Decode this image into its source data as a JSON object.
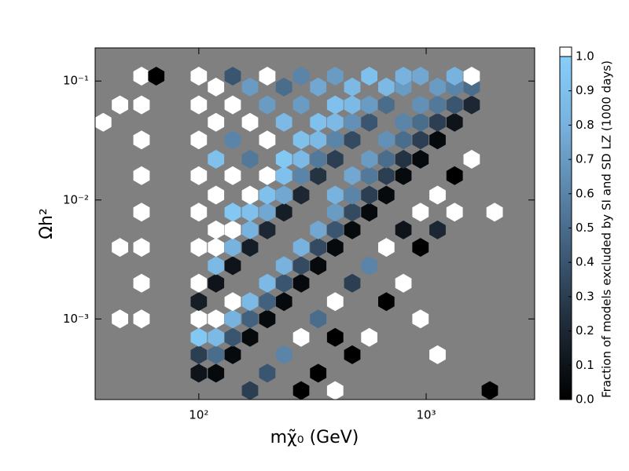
{
  "chart_data": {
    "type": "hexbin",
    "xlabel": "mχ̃₀ (GeV)",
    "ylabel": "Ωh²",
    "colorbar_label": "Fraction of models excluded by SI and SD LZ (1000 days)",
    "xscale": "log",
    "yscale": "log",
    "xlim": [
      35,
      3000
    ],
    "ylim": [
      0.00021,
      0.19
    ],
    "xticks": [
      {
        "value": 100,
        "label": "10²"
      },
      {
        "value": 1000,
        "label": "10³"
      }
    ],
    "yticks": [
      {
        "value": 0.001,
        "label": "10⁻³"
      },
      {
        "value": 0.01,
        "label": "10⁻²"
      },
      {
        "value": 0.1,
        "label": "10⁻¹"
      }
    ],
    "background": "#808080",
    "colormap": [
      "#000000",
      "#1c2733",
      "#3a5570",
      "#5a84a8",
      "#78b2de",
      "#87cefa"
    ],
    "over_color": "#ffffff",
    "clim": [
      0,
      1
    ],
    "cticks": [
      {
        "value": 0,
        "label": "0.0"
      },
      0.1,
      0.2,
      0.3,
      0.4,
      0.5,
      0.6,
      0.7,
      0.8,
      0.9,
      {
        "value": 1,
        "label": "1.0"
      }
    ],
    "cells": [
      [
        100,
        0.00035,
        0.1
      ],
      [
        100,
        0.0005,
        0.3
      ],
      [
        100,
        0.0007,
        0.95
      ],
      [
        100,
        0.001,
        1
      ],
      [
        100,
        0.0014,
        0.15
      ],
      [
        100,
        0.002,
        1
      ],
      [
        100,
        0.004,
        1
      ],
      [
        100,
        0.0079,
        1
      ],
      [
        100,
        0.016,
        1
      ],
      [
        100,
        0.032,
        1
      ],
      [
        100,
        0.063,
        1
      ],
      [
        100,
        0.11,
        1
      ],
      [
        119,
        0.00035,
        0.05
      ],
      [
        119,
        0.0005,
        0.5
      ],
      [
        119,
        0.0007,
        0.85
      ],
      [
        119,
        0.001,
        1
      ],
      [
        119,
        0.002,
        0.1
      ],
      [
        119,
        0.0028,
        0.85
      ],
      [
        119,
        0.004,
        1
      ],
      [
        119,
        0.0056,
        1
      ],
      [
        119,
        0.011,
        1
      ],
      [
        119,
        0.022,
        0.9
      ],
      [
        119,
        0.045,
        1
      ],
      [
        119,
        0.089,
        1
      ],
      [
        141,
        0.0005,
        0.05
      ],
      [
        141,
        0.0007,
        0.4
      ],
      [
        141,
        0.001,
        0.8
      ],
      [
        141,
        0.0014,
        1
      ],
      [
        141,
        0.0028,
        0.1
      ],
      [
        141,
        0.004,
        0.8
      ],
      [
        141,
        0.0056,
        1
      ],
      [
        141,
        0.0079,
        0.95
      ],
      [
        141,
        0.016,
        1
      ],
      [
        141,
        0.032,
        0.6
      ],
      [
        141,
        0.063,
        1
      ],
      [
        141,
        0.11,
        0.4
      ],
      [
        168,
        0.00025,
        0.3
      ],
      [
        168,
        0.0007,
        0.05
      ],
      [
        168,
        0.001,
        0.45
      ],
      [
        168,
        0.0014,
        0.85
      ],
      [
        168,
        0.004,
        0.15
      ],
      [
        168,
        0.0056,
        0.8
      ],
      [
        168,
        0.0079,
        0.9
      ],
      [
        168,
        0.011,
        1
      ],
      [
        168,
        0.022,
        0.55
      ],
      [
        168,
        0.045,
        1
      ],
      [
        168,
        0.089,
        0.7
      ],
      [
        200,
        0.00035,
        0.4
      ],
      [
        200,
        0.001,
        0.05
      ],
      [
        200,
        0.0014,
        0.45
      ],
      [
        200,
        0.002,
        0.85
      ],
      [
        200,
        0.0056,
        0.2
      ],
      [
        200,
        0.0079,
        0.75
      ],
      [
        200,
        0.011,
        0.9
      ],
      [
        200,
        0.016,
        1
      ],
      [
        200,
        0.032,
        1
      ],
      [
        200,
        0.063,
        0.7
      ],
      [
        200,
        0.11,
        1
      ],
      [
        237,
        0.0005,
        0.6
      ],
      [
        237,
        0.0014,
        0.05
      ],
      [
        237,
        0.002,
        0.4
      ],
      [
        237,
        0.0028,
        0.8
      ],
      [
        237,
        0.0079,
        0.15
      ],
      [
        237,
        0.011,
        0.75
      ],
      [
        237,
        0.016,
        0.9
      ],
      [
        237,
        0.022,
        0.95
      ],
      [
        237,
        0.045,
        0.85
      ],
      [
        237,
        0.089,
        0.5
      ],
      [
        282,
        0.00025,
        0
      ],
      [
        282,
        0.0007,
        1
      ],
      [
        282,
        0.002,
        0.05
      ],
      [
        282,
        0.0028,
        0.35
      ],
      [
        282,
        0.004,
        0.8
      ],
      [
        282,
        0.011,
        0.2
      ],
      [
        282,
        0.016,
        0.6
      ],
      [
        282,
        0.022,
        0.85
      ],
      [
        282,
        0.032,
        0.9
      ],
      [
        282,
        0.063,
        0.7
      ],
      [
        282,
        0.11,
        0.6
      ],
      [
        335,
        0.00035,
        0
      ],
      [
        335,
        0.001,
        0.5
      ],
      [
        335,
        0.0028,
        0.05
      ],
      [
        335,
        0.004,
        0.35
      ],
      [
        335,
        0.0056,
        0.75
      ],
      [
        335,
        0.016,
        0.25
      ],
      [
        335,
        0.022,
        0.55
      ],
      [
        335,
        0.032,
        0.85
      ],
      [
        335,
        0.045,
        0.9
      ],
      [
        335,
        0.089,
        0.75
      ],
      [
        398,
        0.00025,
        1
      ],
      [
        398,
        0.0007,
        0
      ],
      [
        398,
        0.0014,
        1
      ],
      [
        398,
        0.004,
        0.05
      ],
      [
        398,
        0.0056,
        0.4
      ],
      [
        398,
        0.0079,
        0.7
      ],
      [
        398,
        0.011,
        0.8
      ],
      [
        398,
        0.022,
        0.3
      ],
      [
        398,
        0.032,
        0.6
      ],
      [
        398,
        0.045,
        0.85
      ],
      [
        398,
        0.063,
        0.9
      ],
      [
        398,
        0.11,
        0.7
      ],
      [
        473,
        0.0005,
        0
      ],
      [
        473,
        0.002,
        0.3
      ],
      [
        473,
        0.0056,
        0.05
      ],
      [
        473,
        0.0079,
        0.35
      ],
      [
        473,
        0.011,
        0.6
      ],
      [
        473,
        0.016,
        0.75
      ],
      [
        473,
        0.032,
        0.35
      ],
      [
        473,
        0.045,
        0.65
      ],
      [
        473,
        0.063,
        0.85
      ],
      [
        473,
        0.089,
        0.85
      ],
      [
        562,
        0.0007,
        1
      ],
      [
        562,
        0.0028,
        0.6
      ],
      [
        562,
        0.0079,
        0.05
      ],
      [
        562,
        0.011,
        0.3
      ],
      [
        562,
        0.016,
        0.55
      ],
      [
        562,
        0.022,
        0.7
      ],
      [
        562,
        0.045,
        0.4
      ],
      [
        562,
        0.063,
        0.7
      ],
      [
        562,
        0.11,
        0.9
      ],
      [
        668,
        0.0014,
        0
      ],
      [
        668,
        0.004,
        1
      ],
      [
        668,
        0.011,
        0.05
      ],
      [
        668,
        0.016,
        0.3
      ],
      [
        668,
        0.022,
        0.5
      ],
      [
        668,
        0.032,
        0.65
      ],
      [
        668,
        0.063,
        0.5
      ],
      [
        668,
        0.089,
        0.85
      ],
      [
        794,
        0.002,
        1
      ],
      [
        794,
        0.0056,
        0.1
      ],
      [
        794,
        0.016,
        0.05
      ],
      [
        794,
        0.022,
        0.25
      ],
      [
        794,
        0.032,
        0.5
      ],
      [
        794,
        0.045,
        0.6
      ],
      [
        794,
        0.089,
        0.7
      ],
      [
        794,
        0.11,
        0.8
      ],
      [
        944,
        0.001,
        1
      ],
      [
        944,
        0.004,
        0
      ],
      [
        944,
        0.0079,
        1
      ],
      [
        944,
        0.022,
        0.05
      ],
      [
        944,
        0.032,
        0.3
      ],
      [
        944,
        0.045,
        0.5
      ],
      [
        944,
        0.063,
        0.65
      ],
      [
        944,
        0.11,
        0.75
      ],
      [
        1122,
        0.0005,
        1
      ],
      [
        1122,
        0.0056,
        0.2
      ],
      [
        1122,
        0.011,
        1
      ],
      [
        1122,
        0.032,
        0.05
      ],
      [
        1122,
        0.045,
        0.3
      ],
      [
        1122,
        0.063,
        0.55
      ],
      [
        1122,
        0.089,
        0.7
      ],
      [
        1334,
        0.0079,
        1
      ],
      [
        1334,
        0.016,
        0
      ],
      [
        1334,
        0.045,
        0.1
      ],
      [
        1334,
        0.063,
        0.4
      ],
      [
        1334,
        0.089,
        0.6
      ],
      [
        1334,
        0.11,
        0.8
      ],
      [
        1585,
        0.022,
        1
      ],
      [
        1585,
        0.063,
        0.2
      ],
      [
        1585,
        0.089,
        0.5
      ],
      [
        1585,
        0.11,
        1
      ],
      [
        1905,
        0.00025,
        0
      ],
      [
        2000,
        0.0079,
        1
      ],
      [
        56,
        0.001,
        1
      ],
      [
        56,
        0.002,
        1
      ],
      [
        56,
        0.004,
        1
      ],
      [
        56,
        0.0079,
        1
      ],
      [
        56,
        0.016,
        1
      ],
      [
        56,
        0.032,
        1
      ],
      [
        56,
        0.063,
        1
      ],
      [
        56,
        0.11,
        1
      ],
      [
        45,
        0.001,
        1
      ],
      [
        45,
        0.004,
        1
      ],
      [
        45,
        0.063,
        1
      ],
      [
        65,
        0.11,
        0
      ],
      [
        38,
        0.045,
        1
      ]
    ]
  }
}
